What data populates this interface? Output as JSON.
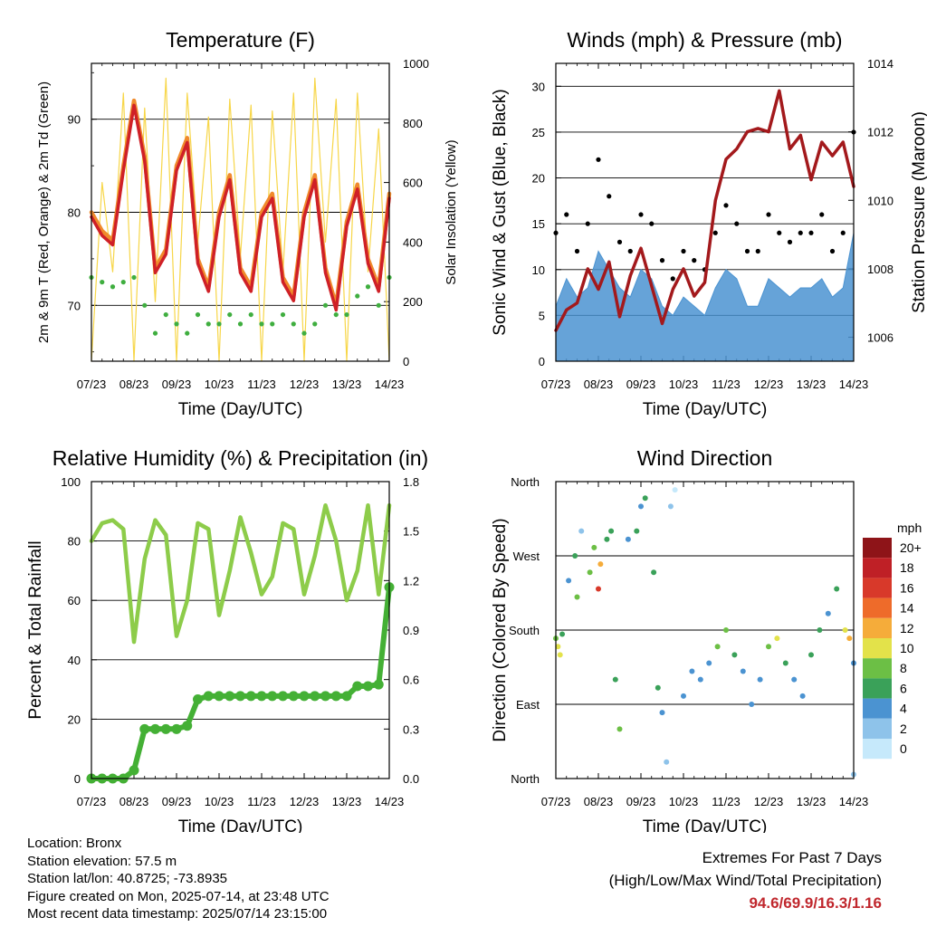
{
  "x_ticks": [
    "07/23",
    "08/23",
    "09/23",
    "10/23",
    "11/23",
    "12/23",
    "13/23",
    "14/23"
  ],
  "colors": {
    "temp_9m": "#f08a2c",
    "temp_2m": "#cf2027",
    "dewpoint": "#3fae3f",
    "solar": "#f7d648",
    "wind_sonic": "#4b93d1",
    "gust": "#000000",
    "pressure": "#a3191c",
    "rh": "#8dcc4a",
    "precip": "#44b035",
    "extremes_text": "#c0272d"
  },
  "chart_data": [
    {
      "type": "line",
      "title": "Temperature (F)",
      "xlabel": "Time (Day/UTC)",
      "ylabel": "2m & 9m T (Red, Orange) & 2m Td (Green)",
      "y2label": "Solar Insolation (Yellow)",
      "ylim": [
        64,
        96
      ],
      "yticks": [
        70,
        80,
        90
      ],
      "y2lim": [
        0,
        1000
      ],
      "y2ticks": [
        0,
        200,
        400,
        600,
        800,
        1000
      ],
      "x": [
        7.0,
        7.25,
        7.5,
        7.75,
        8.0,
        8.25,
        8.5,
        8.75,
        9.0,
        9.25,
        9.5,
        9.75,
        10.0,
        10.25,
        10.5,
        10.75,
        11.0,
        11.25,
        11.5,
        11.75,
        12.0,
        12.25,
        12.5,
        12.75,
        13.0,
        13.25,
        13.5,
        13.75,
        14.0
      ],
      "series": [
        {
          "values": [
            80,
            78,
            77,
            85,
            92,
            86,
            74,
            76,
            85,
            88,
            75,
            72,
            80,
            84,
            74,
            72,
            80,
            82,
            73,
            71,
            80,
            84,
            74,
            70,
            79,
            83,
            75,
            72,
            82
          ]
        },
        {
          "values": [
            79.5,
            77.5,
            76.5,
            84.5,
            91.5,
            85.5,
            73.5,
            75.5,
            84.5,
            87.5,
            74.5,
            71.5,
            79.5,
            83.5,
            73.5,
            71.5,
            79.5,
            81.5,
            72.5,
            70.5,
            79.5,
            83.5,
            73.5,
            69.5,
            78.5,
            82.5,
            74.5,
            71.5,
            81.5
          ]
        },
        {
          "values": [
            73,
            72.5,
            72,
            72.5,
            73,
            70,
            67,
            69,
            68,
            67,
            69,
            68,
            68,
            69,
            68,
            69,
            68,
            68,
            69,
            68,
            67,
            68,
            70,
            69,
            69,
            71,
            72,
            70,
            73
          ]
        },
        {
          "values": [
            0,
            600,
            300,
            900,
            0,
            850,
            200,
            950,
            0,
            900,
            400,
            820,
            0,
            880,
            350,
            860,
            0,
            840,
            300,
            900,
            0,
            950,
            400,
            880,
            0,
            900,
            300,
            780,
            0
          ]
        }
      ]
    },
    {
      "type": "line",
      "title": "Winds (mph) & Pressure (mb)",
      "xlabel": "Time (Day/UTC)",
      "ylabel": "Sonic Wind & Gust (Blue, Black)",
      "y2label": "Station Pressure (Maroon)",
      "ylim": [
        0,
        32.5
      ],
      "yticks": [
        0,
        5,
        10,
        15,
        20,
        25,
        30
      ],
      "y2lim": [
        1005.3,
        1014
      ],
      "y2ticks": [
        1006,
        1008,
        1010,
        1012,
        1014
      ],
      "x": [
        7.0,
        7.25,
        7.5,
        7.75,
        8.0,
        8.25,
        8.5,
        8.75,
        9.0,
        9.25,
        9.5,
        9.75,
        10.0,
        10.25,
        10.5,
        10.75,
        11.0,
        11.25,
        11.5,
        11.75,
        12.0,
        12.25,
        12.5,
        12.75,
        13.0,
        13.25,
        13.5,
        13.75,
        14.0
      ],
      "series": [
        {
          "values": [
            6,
            9,
            7,
            8,
            12,
            10,
            8,
            7,
            10,
            9,
            6,
            5,
            7,
            6,
            5,
            8,
            10,
            9,
            6,
            6,
            9,
            8,
            7,
            8,
            8,
            9,
            7,
            8,
            14
          ]
        },
        {
          "values": [
            14,
            16,
            12,
            15,
            22,
            18,
            13,
            12,
            16,
            15,
            11,
            9,
            12,
            11,
            10,
            14,
            17,
            15,
            12,
            12,
            16,
            14,
            13,
            14,
            14,
            16,
            12,
            14,
            25
          ]
        },
        {
          "values": [
            1006.2,
            1006.8,
            1007.0,
            1008.0,
            1007.4,
            1008.2,
            1006.6,
            1007.8,
            1008.6,
            1007.5,
            1006.4,
            1007.4,
            1008.0,
            1007.2,
            1007.6,
            1010.0,
            1011.2,
            1011.5,
            1012.0,
            1012.1,
            1012.0,
            1013.2,
            1011.5,
            1011.9,
            1010.6,
            1011.7,
            1011.3,
            1011.7,
            1010.4
          ]
        }
      ]
    },
    {
      "type": "line",
      "title": "Relative Humidity (%) & Precipitation (in)",
      "xlabel": "Time (Day/UTC)",
      "ylabel": "Percent & Total Rainfall",
      "ylim": [
        0,
        100
      ],
      "yticks": [
        0,
        20,
        40,
        60,
        80,
        100
      ],
      "y2lim": [
        0,
        1.8
      ],
      "y2ticks": [
        "0.0",
        "0.3",
        "0.6",
        "0.9",
        "1.2",
        "1.5",
        "1.8"
      ],
      "x": [
        7.0,
        7.25,
        7.5,
        7.75,
        8.0,
        8.25,
        8.5,
        8.75,
        9.0,
        9.25,
        9.5,
        9.75,
        10.0,
        10.25,
        10.5,
        10.75,
        11.0,
        11.25,
        11.5,
        11.75,
        12.0,
        12.25,
        12.5,
        12.75,
        13.0,
        13.25,
        13.5,
        13.75,
        14.0
      ],
      "series": [
        {
          "values": [
            80,
            86,
            87,
            84,
            46,
            74,
            87,
            82,
            48,
            60,
            86,
            84,
            55,
            70,
            88,
            76,
            62,
            68,
            86,
            84,
            62,
            75,
            92,
            80,
            60,
            70,
            92,
            62,
            92
          ]
        },
        {
          "values": [
            0,
            0,
            0,
            0,
            0.05,
            0.3,
            0.3,
            0.3,
            0.3,
            0.32,
            0.48,
            0.5,
            0.5,
            0.5,
            0.5,
            0.5,
            0.5,
            0.5,
            0.5,
            0.5,
            0.5,
            0.5,
            0.5,
            0.5,
            0.5,
            0.56,
            0.56,
            0.57,
            1.16
          ]
        }
      ]
    },
    {
      "type": "scatter",
      "title": "Wind Direction",
      "xlabel": "Time (Day/UTC)",
      "ylabel": "Direction (Colored By Speed)",
      "ylim": [
        0,
        360
      ],
      "yticks": [
        "North",
        "East",
        "South",
        "West",
        "North"
      ],
      "colorbar_label": "mph",
      "colorbar_levels": [
        "0",
        "2",
        "4",
        "6",
        "8",
        "10",
        "12",
        "14",
        "16",
        "18",
        "20+"
      ],
      "colorbar_colors": [
        "#c6e9fb",
        "#8ec3ea",
        "#4b93d1",
        "#3aa159",
        "#6cbf45",
        "#e3e24a",
        "#f5ac3a",
        "#ee6b2a",
        "#d8392a",
        "#bf2026",
        "#8e1418"
      ],
      "points": [
        [
          7.0,
          170,
          8
        ],
        [
          7.05,
          160,
          10
        ],
        [
          7.1,
          150,
          11
        ],
        [
          7.15,
          175,
          6
        ],
        [
          7.3,
          240,
          4
        ],
        [
          7.45,
          270,
          6
        ],
        [
          7.5,
          220,
          8
        ],
        [
          7.6,
          300,
          3
        ],
        [
          7.8,
          250,
          9
        ],
        [
          7.9,
          280,
          8
        ],
        [
          8.0,
          230,
          16
        ],
        [
          8.05,
          260,
          13
        ],
        [
          8.2,
          290,
          6
        ],
        [
          8.3,
          300,
          7
        ],
        [
          8.4,
          120,
          6
        ],
        [
          8.5,
          60,
          8
        ],
        [
          8.7,
          290,
          5
        ],
        [
          8.9,
          300,
          7
        ],
        [
          9.0,
          330,
          5
        ],
        [
          9.1,
          340,
          6
        ],
        [
          9.3,
          250,
          6
        ],
        [
          9.4,
          110,
          7
        ],
        [
          9.5,
          80,
          4
        ],
        [
          9.6,
          20,
          2
        ],
        [
          9.7,
          330,
          2
        ],
        [
          9.8,
          350,
          1
        ],
        [
          10.0,
          100,
          5
        ],
        [
          10.2,
          130,
          5
        ],
        [
          10.4,
          120,
          4
        ],
        [
          10.6,
          140,
          4
        ],
        [
          10.8,
          160,
          8
        ],
        [
          11.0,
          180,
          9
        ],
        [
          11.2,
          150,
          7
        ],
        [
          11.4,
          130,
          5
        ],
        [
          11.6,
          90,
          4
        ],
        [
          11.8,
          120,
          5
        ],
        [
          12.0,
          160,
          9
        ],
        [
          12.2,
          170,
          10
        ],
        [
          12.4,
          140,
          6
        ],
        [
          12.6,
          120,
          5
        ],
        [
          12.8,
          100,
          5
        ],
        [
          13.0,
          150,
          7
        ],
        [
          13.2,
          180,
          6
        ],
        [
          13.4,
          200,
          5
        ],
        [
          13.6,
          230,
          7
        ],
        [
          13.8,
          180,
          11
        ],
        [
          13.9,
          170,
          13
        ],
        [
          14.0,
          140,
          4
        ],
        [
          14.0,
          5,
          3
        ]
      ]
    }
  ],
  "info": {
    "location": "Location: Bronx",
    "elevation": "Station elevation: 57.5 m",
    "latlon": "Station lat/lon: 40.8725; -73.8935",
    "created": "Figure created on Mon, 2025-07-14, at 23:48 UTC",
    "recent": "Most recent data timestamp: 2025/07/14 23:15:00"
  },
  "extremes": {
    "title": "Extremes For Past 7 Days",
    "subtitle": "(High/Low/Max Wind/Total Precipitation)",
    "values": "94.6/69.9/16.3/1.16"
  }
}
